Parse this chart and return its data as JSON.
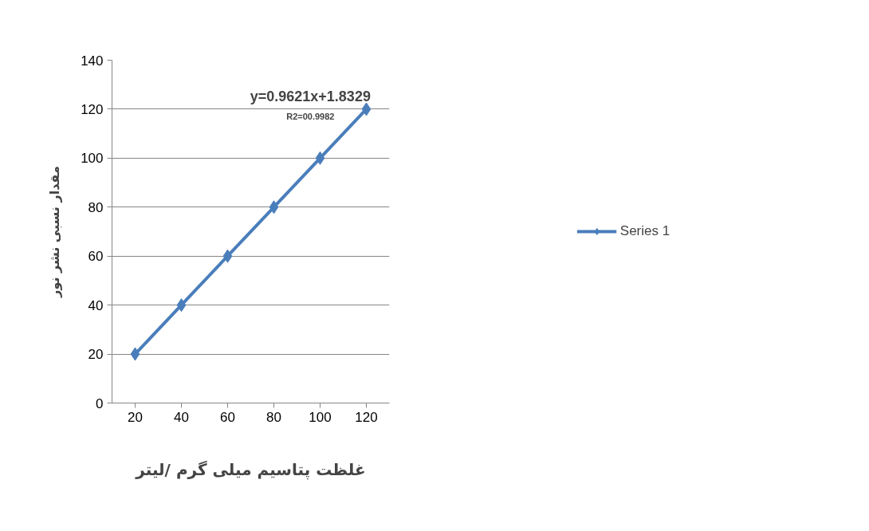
{
  "chart_data": {
    "type": "line",
    "xlabel": "غلظت پتاسیم میلی گرم /لیتر",
    "ylabel": "مقدار نسبی نشر نور",
    "categories": [
      "20",
      "40",
      "60",
      "80",
      "100",
      "120"
    ],
    "series": [
      {
        "name": "Series 1",
        "color": "#4a7ebb",
        "values": [
          20,
          40,
          60,
          80,
          100,
          120
        ]
      }
    ],
    "ylim": [
      0,
      140
    ],
    "yticks": [
      0,
      20,
      40,
      60,
      80,
      100,
      120,
      140
    ],
    "grid": "y",
    "legend": "right",
    "marker": "diamond",
    "line_style": "solid",
    "annotations": [
      "y=0.9621x+1.8329",
      "R2=00.9982"
    ]
  }
}
